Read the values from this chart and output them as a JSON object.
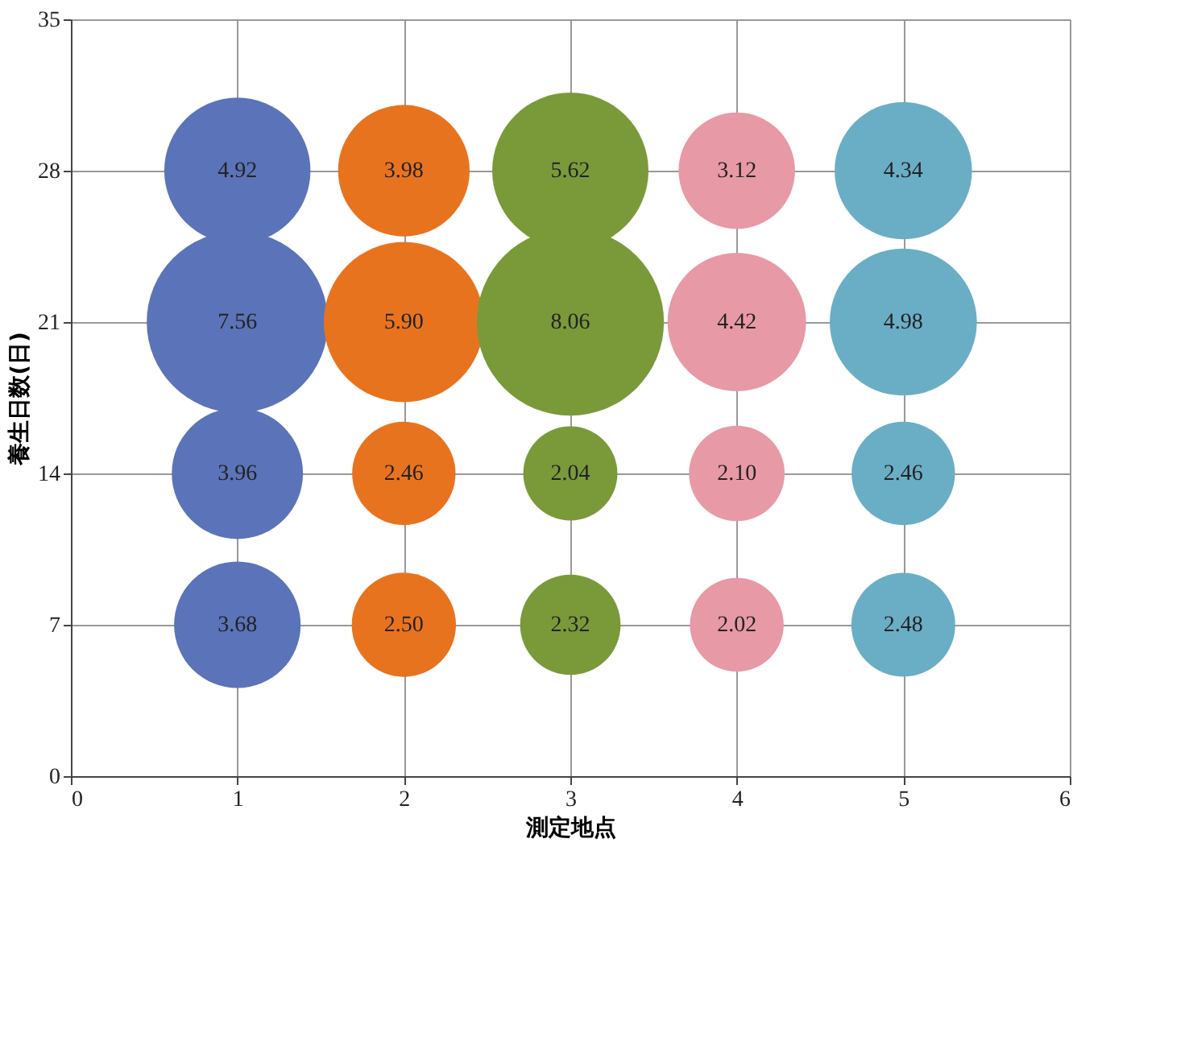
{
  "chart_data": {
    "type": "bubble",
    "xlabel": "測定地点",
    "ylabel": "養生日数(日)",
    "xlim": [
      0,
      6
    ],
    "xticks": [
      0,
      1,
      2,
      3,
      4,
      5,
      6
    ],
    "ylim": [
      0,
      35
    ],
    "yticks": [
      0,
      7,
      14,
      21,
      28,
      35
    ],
    "grid": true,
    "series": [
      {
        "color": "#5b73b8",
        "x": [
          1,
          1,
          1,
          1
        ],
        "values": [
          28,
          21,
          14,
          7
        ],
        "sizes": [
          0.61,
          0.938,
          0.491,
          0.457
        ]
      },
      {
        "color": "#e8731f",
        "x": [
          2,
          2,
          2,
          2
        ],
        "values": [
          28,
          21,
          14,
          7
        ],
        "sizes": [
          0.494,
          0.732,
          0.305,
          0.31
        ]
      },
      {
        "color": "#7a9a3a",
        "x": [
          3,
          3,
          3,
          3
        ],
        "values": [
          28,
          21,
          14,
          7
        ],
        "sizes": [
          0.697,
          1.0,
          0.253,
          0.288
        ]
      },
      {
        "color": "#e899a6",
        "x": [
          4,
          4,
          4,
          4
        ],
        "values": [
          28,
          21,
          14,
          7
        ],
        "sizes": [
          0.387,
          0.548,
          0.261,
          0.251
        ]
      },
      {
        "color": "#6aaec6",
        "x": [
          5,
          5,
          5,
          5
        ],
        "values": [
          28,
          21,
          14,
          7
        ],
        "sizes": [
          0.538,
          0.618,
          0.305,
          0.308
        ]
      }
    ],
    "annotations": [
      {
        "text": "4.92",
        "x": 1,
        "y": 28
      },
      {
        "text": "7.56",
        "x": 1,
        "y": 21
      },
      {
        "text": "3.96",
        "x": 1,
        "y": 14
      },
      {
        "text": "3.68",
        "x": 1,
        "y": 7
      },
      {
        "text": "3.98",
        "x": 2,
        "y": 28
      },
      {
        "text": "5.90",
        "x": 2,
        "y": 21
      },
      {
        "text": "2.46",
        "x": 2,
        "y": 14
      },
      {
        "text": "2.50",
        "x": 2,
        "y": 7
      },
      {
        "text": "5.62",
        "x": 3,
        "y": 28
      },
      {
        "text": "8.06",
        "x": 3,
        "y": 21
      },
      {
        "text": "2.04",
        "x": 3,
        "y": 14
      },
      {
        "text": "2.32",
        "x": 3,
        "y": 7
      },
      {
        "text": "3.12",
        "x": 4,
        "y": 28
      },
      {
        "text": "4.42",
        "x": 4,
        "y": 21
      },
      {
        "text": "2.10",
        "x": 4,
        "y": 14
      },
      {
        "text": "2.02",
        "x": 4,
        "y": 7
      },
      {
        "text": "4.34",
        "x": 5,
        "y": 28
      },
      {
        "text": "4.98",
        "x": 5,
        "y": 21
      },
      {
        "text": "2.46",
        "x": 5,
        "y": 14
      },
      {
        "text": "2.48",
        "x": 5,
        "y": 7
      }
    ]
  }
}
